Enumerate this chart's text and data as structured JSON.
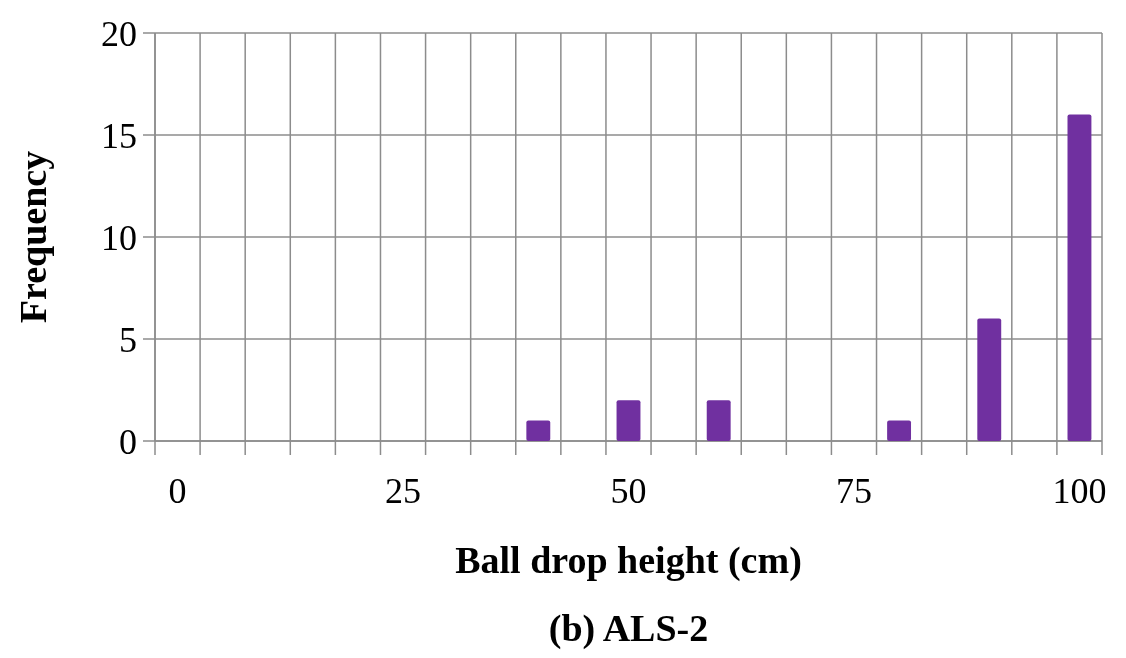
{
  "chart_data": {
    "type": "bar",
    "title": "(b) ALS-2",
    "xlabel": "Ball drop height (cm)",
    "ylabel": "Frequency",
    "categories": [
      "0",
      null,
      null,
      null,
      null,
      "25",
      null,
      null,
      null,
      null,
      "50",
      null,
      null,
      null,
      null,
      "75",
      null,
      null,
      null,
      null,
      "100"
    ],
    "values": [
      0,
      0,
      0,
      0,
      0,
      0,
      0,
      0,
      1,
      0,
      2,
      0,
      2,
      0,
      0,
      0,
      1,
      0,
      6,
      0,
      16
    ],
    "color": "#7030a0",
    "ylim": [
      0,
      20
    ],
    "yticks": [
      0,
      5,
      10,
      15,
      20
    ],
    "grid": true
  }
}
